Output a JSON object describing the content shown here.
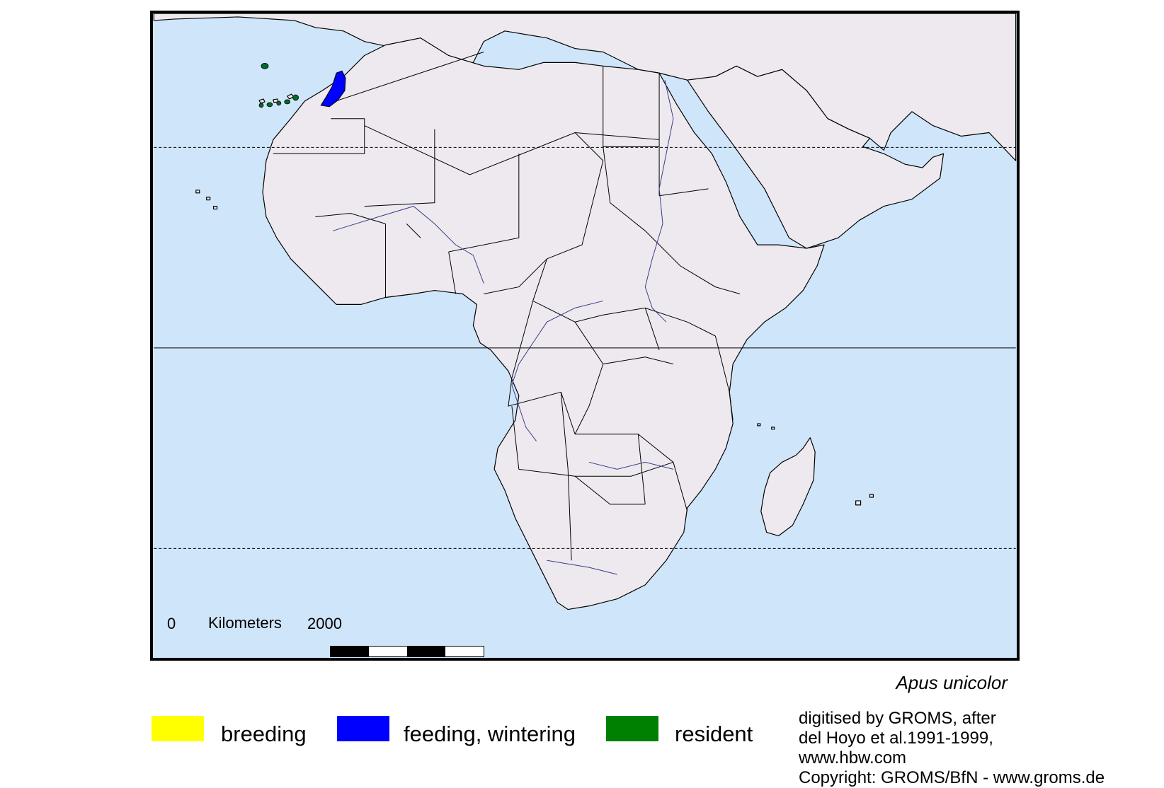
{
  "colors": {
    "ocean": "#cfe5fa",
    "land": "#ede9ee",
    "border_line": "#000000",
    "river": "#3b3b8a",
    "breeding": "#ffff00",
    "feeding_wintering": "#0000ff",
    "resident": "#008000"
  },
  "map": {
    "region": "Africa",
    "species": "Apus unicolor",
    "scale": {
      "start": "0",
      "unit": "Kilometers",
      "end": "2000"
    }
  },
  "legend": [
    {
      "label": "breeding",
      "color": "#ffff00"
    },
    {
      "label": "feeding, wintering",
      "color": "#0000ff"
    },
    {
      "label": "resident",
      "color": "#008000"
    }
  ],
  "credits": [
    "digitised by GROMS, after",
    "del Hoyo et al.1991-1999,",
    "www.hbw.com",
    "Copyright: GROMS/BfN - www.groms.de"
  ]
}
